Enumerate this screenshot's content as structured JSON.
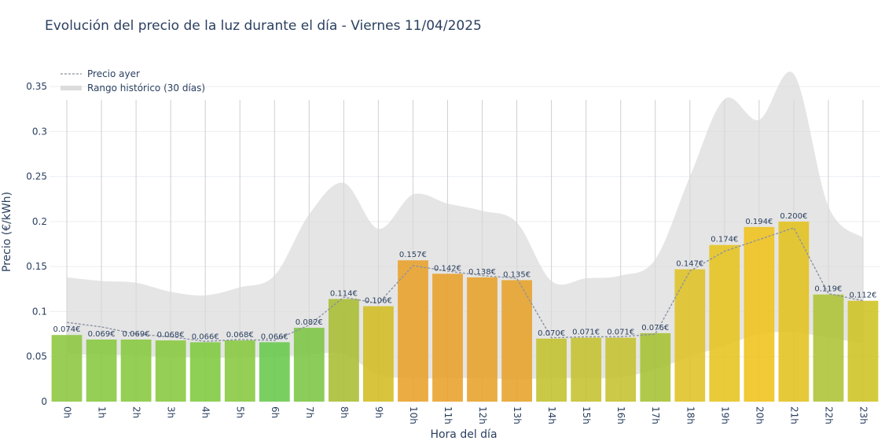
{
  "chart_data": {
    "type": "bar",
    "title": "Evolución del precio de la luz durante el día - Viernes 11/04/2025",
    "xlabel": "Hora del día",
    "ylabel": "Precio (€/kWh)",
    "ylim": [
      0,
      0.385
    ],
    "yticks": [
      0,
      0.05,
      0.1,
      0.15,
      0.2,
      0.25,
      0.3,
      0.35
    ],
    "ytick_labels": [
      "0",
      "0.05",
      "0.1",
      "0.15",
      "0.2",
      "0.25",
      "0.3",
      "0.35"
    ],
    "categories": [
      "0h",
      "1h",
      "2h",
      "3h",
      "4h",
      "5h",
      "6h",
      "7h",
      "8h",
      "9h",
      "10h",
      "11h",
      "12h",
      "13h",
      "14h",
      "15h",
      "16h",
      "17h",
      "18h",
      "19h",
      "20h",
      "21h",
      "22h",
      "23h"
    ],
    "values": [
      0.074,
      0.069,
      0.069,
      0.068,
      0.066,
      0.068,
      0.066,
      0.082,
      0.114,
      0.106,
      0.157,
      0.142,
      0.138,
      0.135,
      0.07,
      0.071,
      0.071,
      0.076,
      0.147,
      0.174,
      0.194,
      0.2,
      0.119,
      0.112
    ],
    "value_labels": [
      "0.074€",
      "0.069€",
      "0.069€",
      "0.068€",
      "0.066€",
      "0.068€",
      "0.066€",
      "0.082€",
      "0.114€",
      "0.106€",
      "0.157€",
      "0.142€",
      "0.138€",
      "0.135€",
      "0.070€",
      "0.071€",
      "0.071€",
      "0.076€",
      "0.147€",
      "0.174€",
      "0.194€",
      "0.200€",
      "0.119€",
      "0.112€"
    ],
    "bar_colors": [
      "#8cc63f",
      "#86c83e",
      "#86c83e",
      "#88c83e",
      "#7ec93f",
      "#86c83e",
      "#66c94b",
      "#7cc543",
      "#a8bd32",
      "#d3bd22",
      "#e9a02a",
      "#e9a02a",
      "#e6a22a",
      "#e6a22a",
      "#c2c22e",
      "#c4c22e",
      "#c4c22e",
      "#a6c232",
      "#dec124",
      "#e6c41e",
      "#f0c21a",
      "#e2c11e",
      "#aec335",
      "#cec322"
    ],
    "series": [
      {
        "name": "Precio ayer",
        "type": "line",
        "values": [
          0.088,
          0.083,
          0.075,
          0.072,
          0.067,
          0.069,
          0.068,
          0.085,
          0.116,
          0.109,
          0.151,
          0.145,
          0.14,
          0.137,
          0.071,
          0.072,
          0.072,
          0.075,
          0.145,
          0.167,
          0.18,
          0.193,
          0.12,
          0.112
        ]
      },
      {
        "name": "Rango histórico (30 días)",
        "type": "area",
        "upper": [
          0.138,
          0.134,
          0.132,
          0.122,
          0.118,
          0.127,
          0.14,
          0.208,
          0.243,
          0.192,
          0.23,
          0.22,
          0.212,
          0.199,
          0.134,
          0.137,
          0.14,
          0.158,
          0.25,
          0.336,
          0.313,
          0.364,
          0.217,
          0.182
        ],
        "lower": [
          0.052,
          0.052,
          0.051,
          0.05,
          0.049,
          0.049,
          0.05,
          0.052,
          0.053,
          0.03,
          0.026,
          0.026,
          0.026,
          0.025,
          0.026,
          0.026,
          0.027,
          0.036,
          0.05,
          0.062,
          0.075,
          0.077,
          0.071,
          0.065
        ]
      }
    ],
    "legend_position": "top-left",
    "grid": true
  }
}
